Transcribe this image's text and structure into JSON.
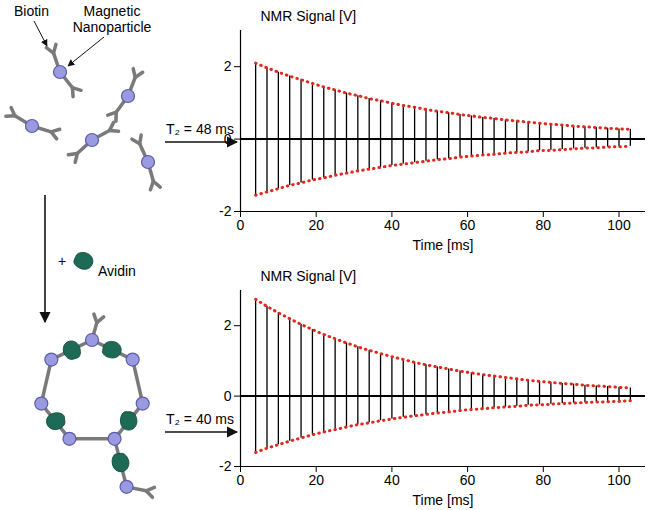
{
  "diagram": {
    "labels": {
      "biotin": "Biotin",
      "nanoparticle": "Magnetic Nanoparticle",
      "plus": "+",
      "reagent": "Avidin"
    },
    "arrows": [
      {
        "label": "T₂ = 48 ms"
      },
      {
        "label": "T₂ = 40 ms"
      }
    ]
  },
  "chart_data": [
    {
      "type": "line",
      "y_label": "NMR Signal [V]",
      "x_label": "Time [ms]",
      "xlim": [
        0,
        107
      ],
      "xticks": [
        0,
        20,
        40,
        60,
        80,
        100
      ],
      "ylim": [
        -2,
        3
      ],
      "yticks": [
        -2,
        0,
        2
      ],
      "baseline": 0,
      "color": "#000000",
      "envelope": {
        "color": "#e0281e",
        "line_style": "dotted"
      },
      "x": [
        4,
        7,
        10,
        13,
        16,
        19,
        22,
        25,
        28,
        31,
        34,
        37,
        40,
        43,
        46,
        49,
        52,
        55,
        58,
        61,
        64,
        67,
        70,
        73,
        76,
        79,
        82,
        85,
        88,
        91,
        94,
        97,
        100,
        103
      ],
      "upper": [
        2.1,
        1.97,
        1.85,
        1.74,
        1.64,
        1.54,
        1.44,
        1.36,
        1.27,
        1.2,
        1.12,
        1.06,
        0.99,
        0.93,
        0.88,
        0.82,
        0.77,
        0.73,
        0.68,
        0.64,
        0.6,
        0.57,
        0.53,
        0.5,
        0.47,
        0.44,
        0.41,
        0.39,
        0.36,
        0.34,
        0.32,
        0.3,
        0.28,
        0.27
      ],
      "lower": [
        -1.55,
        -1.46,
        -1.37,
        -1.28,
        -1.21,
        -1.13,
        -1.07,
        -1.0,
        -0.94,
        -0.88,
        -0.83,
        -0.78,
        -0.73,
        -0.69,
        -0.65,
        -0.61,
        -0.57,
        -0.54,
        -0.5,
        -0.47,
        -0.44,
        -0.42,
        -0.39,
        -0.37,
        -0.35,
        -0.32,
        -0.31,
        -0.29,
        -0.27,
        -0.25,
        -0.24,
        -0.22,
        -0.21,
        -0.2
      ]
    },
    {
      "type": "line",
      "y_label": "NMR Signal [V]",
      "x_label": "Time [ms]",
      "xlim": [
        0,
        107
      ],
      "xticks": [
        0,
        20,
        40,
        60,
        80,
        100
      ],
      "ylim": [
        -2,
        3
      ],
      "yticks": [
        -2,
        0,
        2
      ],
      "baseline": 0,
      "color": "#000000",
      "envelope": {
        "color": "#e0281e",
        "line_style": "dotted"
      },
      "x": [
        4,
        7,
        10,
        13,
        16,
        19,
        22,
        25,
        28,
        31,
        34,
        37,
        40,
        43,
        46,
        49,
        52,
        55,
        58,
        61,
        64,
        67,
        70,
        73,
        76,
        79,
        82,
        85,
        88,
        91,
        94,
        97,
        100,
        103
      ],
      "upper": [
        2.75,
        2.55,
        2.37,
        2.2,
        2.04,
        1.89,
        1.75,
        1.63,
        1.51,
        1.4,
        1.3,
        1.21,
        1.12,
        1.04,
        0.96,
        0.89,
        0.83,
        0.77,
        0.71,
        0.66,
        0.61,
        0.57,
        0.53,
        0.49,
        0.45,
        0.42,
        0.39,
        0.36,
        0.34,
        0.31,
        0.29,
        0.27,
        0.25,
        0.23
      ],
      "lower": [
        -1.6,
        -1.48,
        -1.38,
        -1.28,
        -1.19,
        -1.1,
        -1.02,
        -0.95,
        -0.88,
        -0.81,
        -0.76,
        -0.7,
        -0.65,
        -0.6,
        -0.56,
        -0.52,
        -0.48,
        -0.45,
        -0.41,
        -0.38,
        -0.36,
        -0.33,
        -0.31,
        -0.29,
        -0.26,
        -0.25,
        -0.23,
        -0.21,
        -0.2,
        -0.18,
        -0.17,
        -0.16,
        -0.15,
        -0.13
      ]
    }
  ]
}
